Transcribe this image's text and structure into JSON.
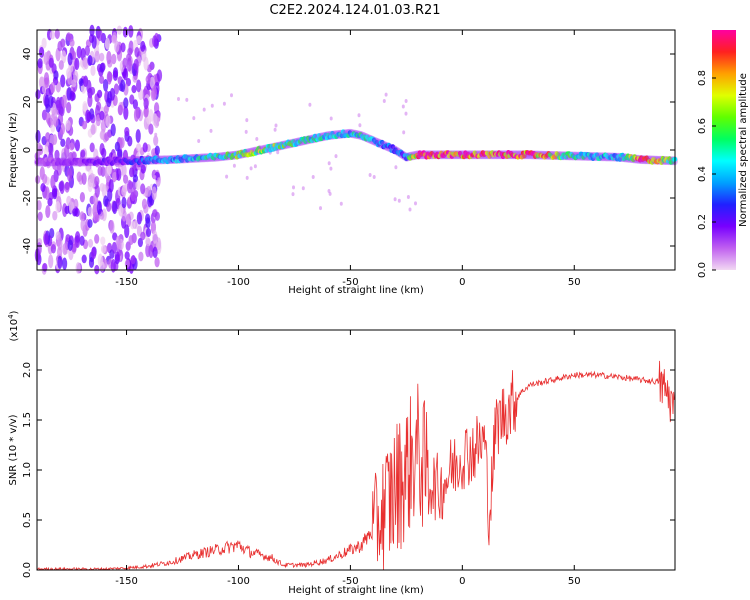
{
  "figure": {
    "title": "C2E2.2024.124.01.03.R21"
  },
  "chart_data": [
    {
      "type": "heatmap",
      "xlabel": "Height of straight line (km)",
      "ylabel": "Frequency (Hz)",
      "xlim": [
        -190,
        95
      ],
      "ylim": [
        -50,
        50
      ],
      "xticks": [
        -150,
        -100,
        -50,
        0,
        50
      ],
      "yticks": [
        -40,
        -20,
        0,
        20,
        40
      ],
      "colorbar": {
        "label": "Normalized spectral amplitude",
        "range": [
          0,
          1
        ],
        "ticks": [
          "0.0",
          "0.2",
          "0.4",
          "0.6",
          "0.8"
        ],
        "colors": [
          "#f2d8f2",
          "#c060f0",
          "#7800ff",
          "#2020ff",
          "#00a0ff",
          "#00ffff",
          "#00ff60",
          "#60ff00",
          "#e0ff00",
          "#ffa000",
          "#ff2020",
          "#ff00a0"
        ]
      },
      "ridge": {
        "x": [
          -190,
          -170,
          -150,
          -130,
          -110,
          -100,
          -90,
          -80,
          -70,
          -60,
          -50,
          -45,
          -40,
          -35,
          -30,
          -25,
          -20,
          -10,
          0,
          10,
          30,
          50,
          70,
          80,
          95
        ],
        "freq": [
          -5,
          -5,
          -4.5,
          -4,
          -3,
          -2,
          0,
          2,
          4,
          6,
          7,
          6,
          4,
          2,
          0,
          -3,
          -2,
          -2,
          -2,
          -2,
          -2,
          -2.5,
          -3,
          -4,
          -4.5
        ],
        "amplitude": [
          0.1,
          0.15,
          0.25,
          0.4,
          0.5,
          0.6,
          0.65,
          0.55,
          0.5,
          0.45,
          0.45,
          0.5,
          0.4,
          0.35,
          0.3,
          0.35,
          0.95,
          0.95,
          0.95,
          0.9,
          0.95,
          0.5,
          0.4,
          0.95,
          0.5
        ]
      },
      "noise_region_x": [
        -190,
        -145
      ]
    },
    {
      "type": "line",
      "xlabel": "Height of straight line (km)",
      "ylabel": "SNR (10 * v/v)",
      "yscale_label": "(x10",
      "yscale_exponent": "4",
      "xlim": [
        -190,
        95
      ],
      "ylim": [
        0,
        2.4
      ],
      "xticks": [
        -150,
        -100,
        -50,
        0,
        50
      ],
      "yticks": [
        "0.0",
        "0.5",
        "1.0",
        "1.5",
        "2.0"
      ],
      "line_color": "#e83030",
      "series": [
        {
          "x": [
            -190,
            -160,
            -150,
            -140,
            -130,
            -120,
            -110,
            -100,
            -95,
            -90,
            -85,
            -80,
            -70,
            -60,
            -50,
            -45,
            -40,
            -35,
            -30,
            -25,
            -20,
            -15,
            -10,
            -5,
            0,
            5,
            10,
            12,
            15,
            20,
            25,
            30,
            40,
            50,
            60,
            70,
            80,
            88,
            92,
            95
          ],
          "y": [
            0.01,
            0.01,
            0.02,
            0.04,
            0.08,
            0.15,
            0.2,
            0.25,
            0.18,
            0.15,
            0.12,
            0.05,
            0.05,
            0.1,
            0.2,
            0.25,
            0.4,
            0.6,
            0.8,
            1.0,
            1.2,
            0.9,
            0.8,
            1.0,
            1.15,
            1.2,
            1.3,
            0.5,
            1.45,
            1.6,
            1.75,
            1.85,
            1.9,
            1.95,
            1.95,
            1.93,
            1.9,
            1.88,
            1.75,
            1.6
          ]
        }
      ]
    }
  ]
}
